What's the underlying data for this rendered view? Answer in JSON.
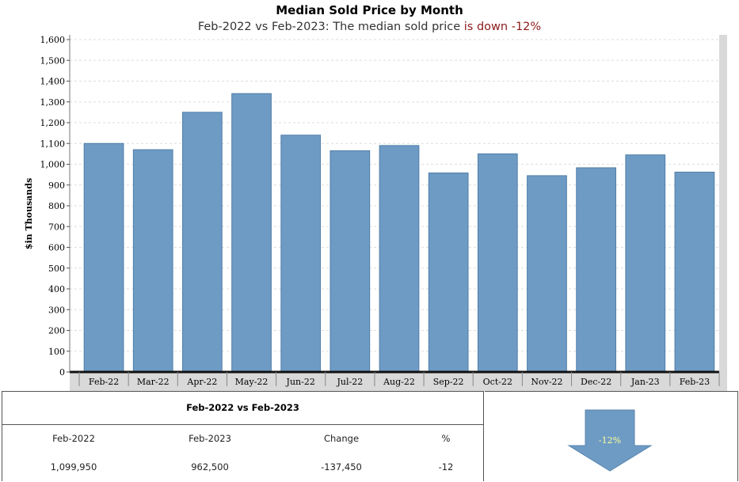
{
  "title": "Median Sold Price by Month",
  "subtitle": {
    "prefix": "Feb-2022 vs Feb-2023: The median sold price ",
    "highlight": "is down -12%"
  },
  "colors": {
    "bar": "#6e9bc4",
    "plot_bg": "#ffffff",
    "frame_bg": "#d9d9d9",
    "arrow": "#6e9bc4",
    "down_text": "#8b1a1a"
  },
  "chart_data": {
    "type": "bar",
    "title": "Median Sold Price by Month",
    "ylabel": "$in Thousands",
    "xlabel": "",
    "categories": [
      "Feb-22",
      "Mar-22",
      "Apr-22",
      "May-22",
      "Jun-22",
      "Jul-22",
      "Aug-22",
      "Sep-22",
      "Oct-22",
      "Nov-22",
      "Dec-22",
      "Jan-23",
      "Feb-23"
    ],
    "values": [
      1100,
      1070,
      1250,
      1340,
      1140,
      1065,
      1090,
      958,
      1050,
      945,
      983,
      1045,
      962
    ],
    "ylim": [
      0,
      1600
    ],
    "yticks": [
      "0",
      "100",
      "200",
      "300",
      "400",
      "500",
      "600",
      "700",
      "800",
      "900",
      "1,000",
      "1,100",
      "1,200",
      "1,300",
      "1,400",
      "1,500",
      "1,600"
    ],
    "grid": true
  },
  "summary": {
    "header": "Feb-2022 vs Feb-2023",
    "columns": [
      "Feb-2022",
      "Feb-2023",
      "Change",
      "%"
    ],
    "values": [
      "1,099,950",
      "962,500",
      "-137,450",
      "-12"
    ]
  },
  "arrow": {
    "label": "-12%",
    "direction": "down",
    "icon": "down-arrow-icon"
  }
}
